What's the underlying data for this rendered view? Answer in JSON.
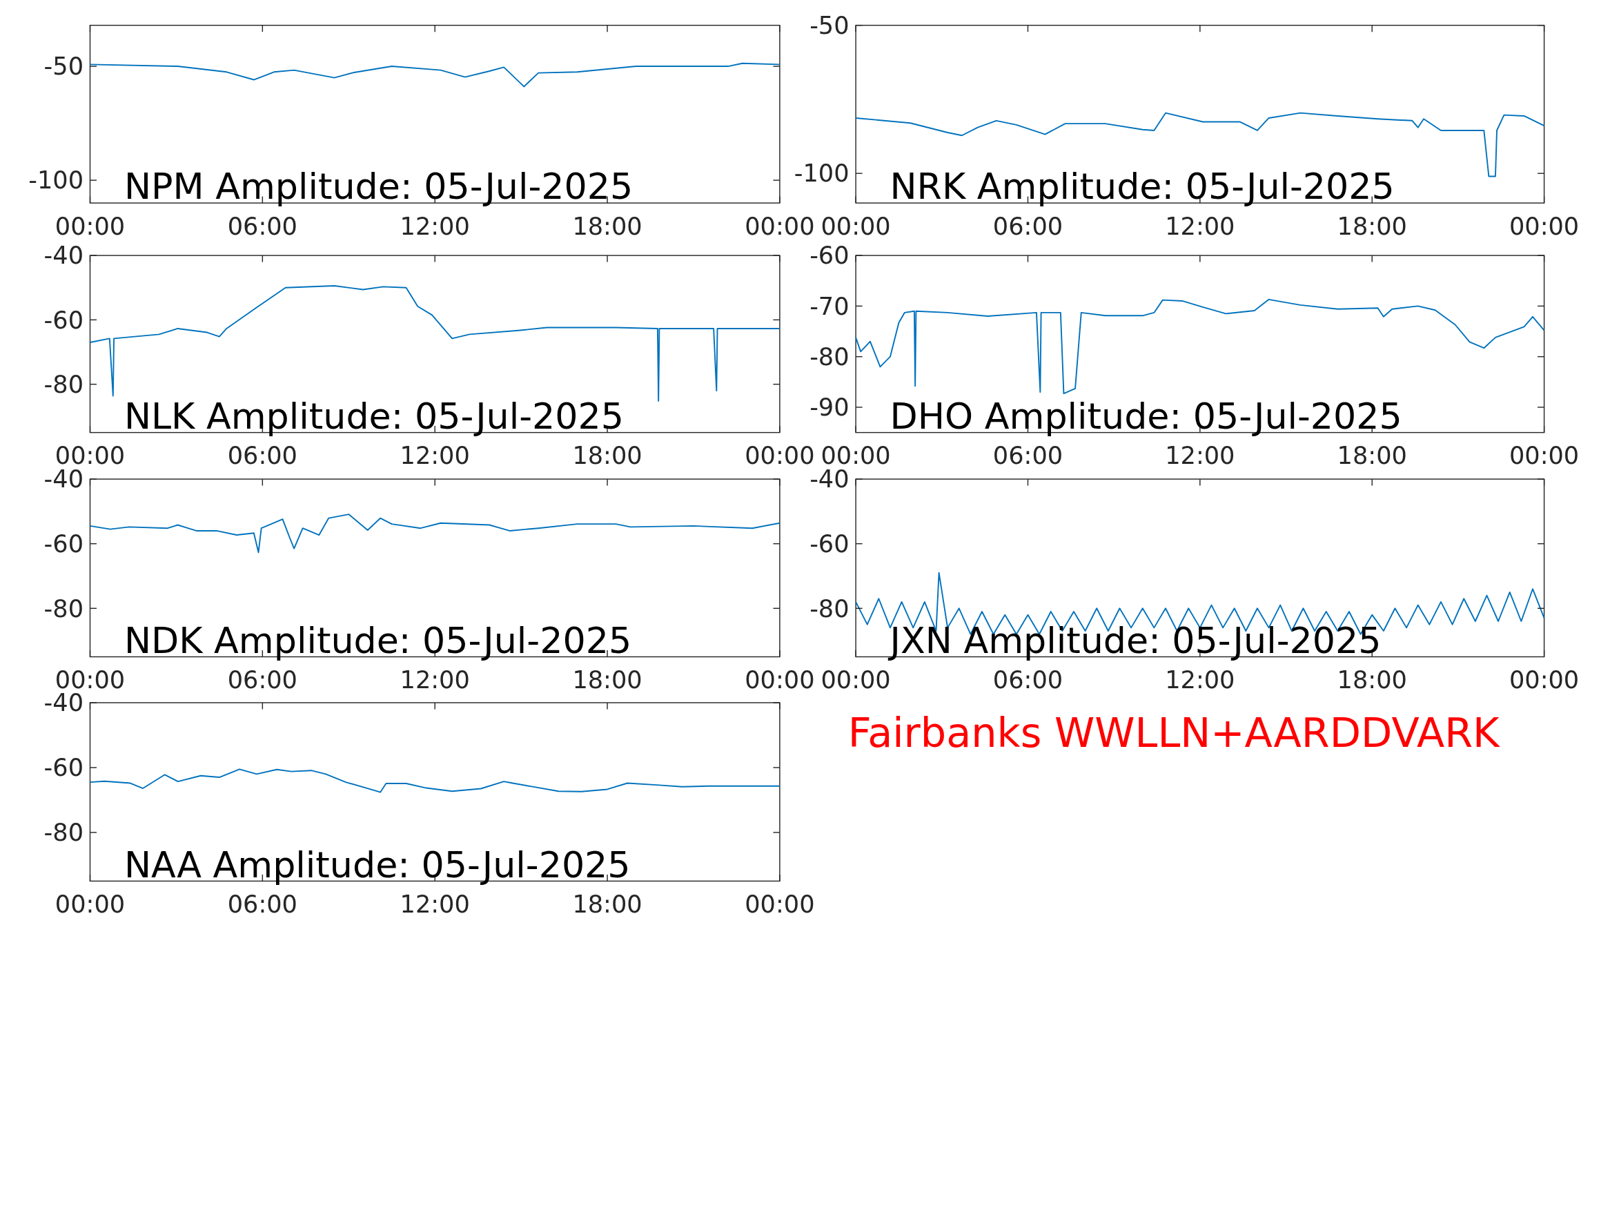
{
  "chart_data": [
    {
      "type": "line",
      "title": "NPM Amplitude: 05-Jul-2025",
      "color": "#0072bd",
      "xlim": [
        0,
        24
      ],
      "xticks": [
        {
          "value": 0,
          "label": "00:00"
        },
        {
          "value": 6,
          "label": "06:00"
        },
        {
          "value": 12,
          "label": "12:00"
        },
        {
          "value": 18,
          "label": "18:00"
        },
        {
          "value": 24,
          "label": "00:00"
        }
      ],
      "ylim": [
        -110,
        -32
      ],
      "yticks": [
        -100,
        -50
      ],
      "x": [
        0,
        3.05,
        4.75,
        5.7,
        6.4,
        7.1,
        8.5,
        9.15,
        10.5,
        12.2,
        13.05,
        13.9,
        14.4,
        15.1,
        15.6,
        16.95,
        19,
        22.2,
        22.7,
        24
      ],
      "values": [
        -49.2,
        -50,
        -52.5,
        -55.9,
        -52.5,
        -51.7,
        -55,
        -52.8,
        -50,
        -51.7,
        -54.7,
        -52.1,
        -50.4,
        -58.9,
        -52.9,
        -52.5,
        -50,
        -50,
        -48.7,
        -49.2
      ]
    },
    {
      "type": "line",
      "title": "NRK Amplitude: 05-Jul-2025",
      "color": "#0072bd",
      "xlim": [
        0,
        24
      ],
      "xticks": [
        {
          "value": 0,
          "label": "00:00"
        },
        {
          "value": 6,
          "label": "06:00"
        },
        {
          "value": 12,
          "label": "12:00"
        },
        {
          "value": 18,
          "label": "18:00"
        },
        {
          "value": 24,
          "label": "00:00"
        }
      ],
      "ylim": [
        -110,
        -50
      ],
      "yticks": [
        -100,
        -50
      ],
      "x": [
        0,
        1.9,
        3.2,
        3.7,
        4.25,
        4.9,
        5.6,
        6.6,
        7.3,
        8.7,
        10,
        10.4,
        10.8,
        12.1,
        13.4,
        14,
        14.4,
        15.5,
        16.8,
        18.2,
        19.4,
        19.6,
        19.8,
        20.4,
        21.9,
        22.07,
        22.3,
        22.35,
        22.6,
        23.3,
        24
      ],
      "values": [
        -81.3,
        -83,
        -86.2,
        -87.2,
        -84.5,
        -82.2,
        -83.6,
        -86.8,
        -83.2,
        -83.2,
        -85.2,
        -85.5,
        -79.6,
        -82.6,
        -82.6,
        -85.5,
        -81.3,
        -79.6,
        -80.6,
        -81.6,
        -82.2,
        -84.5,
        -81.6,
        -85.5,
        -85.5,
        -101,
        -101,
        -85.5,
        -80.3,
        -80.6,
        -83.9
      ]
    },
    {
      "type": "line",
      "title": "NLK Amplitude: 05-Jul-2025",
      "color": "#0072bd",
      "xlim": [
        0,
        24
      ],
      "xticks": [
        {
          "value": 0,
          "label": "00:00"
        },
        {
          "value": 6,
          "label": "06:00"
        },
        {
          "value": 12,
          "label": "12:00"
        },
        {
          "value": 18,
          "label": "18:00"
        },
        {
          "value": 24,
          "label": "00:00"
        }
      ],
      "ylim": [
        -95,
        -40
      ],
      "yticks": [
        -80,
        -60,
        -40
      ],
      "x": [
        0,
        0.68,
        0.8,
        0.83,
        2.4,
        3.05,
        4.07,
        4.5,
        4.75,
        5.76,
        6.8,
        8.5,
        9.5,
        10.2,
        11,
        11.4,
        11.9,
        12.6,
        13.2,
        14.9,
        15.9,
        18.3,
        19.75,
        19.78,
        19.81,
        21.7,
        21.8,
        21.83,
        24
      ],
      "values": [
        -67,
        -65.8,
        -83.6,
        -65.8,
        -64.5,
        -62.7,
        -63.9,
        -65.2,
        -62.7,
        -56.4,
        -50,
        -49.4,
        -50.6,
        -49.7,
        -50,
        -55.8,
        -58.5,
        -65.8,
        -64.5,
        -63.3,
        -62.4,
        -62.4,
        -62.7,
        -85.2,
        -62.7,
        -62.7,
        -82,
        -62.7,
        -62.7
      ]
    },
    {
      "type": "line",
      "title": "DHO Amplitude: 05-Jul-2025",
      "color": "#0072bd",
      "xlim": [
        0,
        24
      ],
      "xticks": [
        {
          "value": 0,
          "label": "00:00"
        },
        {
          "value": 6,
          "label": "06:00"
        },
        {
          "value": 12,
          "label": "12:00"
        },
        {
          "value": 18,
          "label": "18:00"
        },
        {
          "value": 24,
          "label": "00:00"
        }
      ],
      "ylim": [
        -95,
        -60
      ],
      "yticks": [
        -90,
        -80,
        -70,
        -60
      ],
      "x": [
        0,
        0.17,
        0.5,
        0.85,
        1.2,
        1.5,
        1.7,
        2.04,
        2.07,
        2.1,
        3.2,
        4.6,
        6.3,
        6.43,
        6.46,
        7.14,
        7.25,
        7.65,
        7.86,
        8.7,
        10,
        10.4,
        10.7,
        11.4,
        12.1,
        12.9,
        13.9,
        14.4,
        15.5,
        16.8,
        18.2,
        18.4,
        18.7,
        19.6,
        20.2,
        20.9,
        21.4,
        21.9,
        22.3,
        23.3,
        23.6,
        24
      ],
      "values": [
        -76.2,
        -79,
        -77,
        -82,
        -80,
        -73.3,
        -71.3,
        -71,
        -85.8,
        -71,
        -71.3,
        -72,
        -71.3,
        -87,
        -71.3,
        -71.3,
        -87.3,
        -86.3,
        -71.3,
        -71.9,
        -71.9,
        -71.3,
        -68.8,
        -69,
        -70.2,
        -71.5,
        -70.9,
        -68.7,
        -69.8,
        -70.6,
        -70.4,
        -72.1,
        -70.6,
        -70,
        -70.8,
        -73.7,
        -77.1,
        -78.3,
        -76.2,
        -74.1,
        -72.1,
        -74.8
      ]
    },
    {
      "type": "line",
      "title": "NDK Amplitude: 05-Jul-2025",
      "color": "#0072bd",
      "xlim": [
        0,
        24
      ],
      "xticks": [
        {
          "value": 0,
          "label": "00:00"
        },
        {
          "value": 6,
          "label": "06:00"
        },
        {
          "value": 12,
          "label": "12:00"
        },
        {
          "value": 18,
          "label": "18:00"
        },
        {
          "value": 24,
          "label": "00:00"
        }
      ],
      "ylim": [
        -95,
        -40
      ],
      "yticks": [
        -80,
        -60,
        -40
      ],
      "x": [
        0,
        0.7,
        1.36,
        2.7,
        3.05,
        3.7,
        4.4,
        5.1,
        5.7,
        5.86,
        5.96,
        6.7,
        6.95,
        7.1,
        7.4,
        7.97,
        8.3,
        9,
        9.66,
        10.1,
        10.5,
        11.5,
        12.2,
        13.9,
        14.6,
        15.6,
        16.95,
        18.3,
        18.8,
        21,
        23.05,
        24
      ],
      "values": [
        -54.5,
        -55.5,
        -54.8,
        -55.2,
        -54.2,
        -56,
        -56,
        -57.3,
        -56.7,
        -62.7,
        -55.2,
        -52.4,
        -58.2,
        -61.5,
        -55.2,
        -57.3,
        -52.1,
        -50.9,
        -55.8,
        -52.1,
        -53.9,
        -55.2,
        -53.6,
        -54.2,
        -56,
        -55.2,
        -53.9,
        -53.9,
        -54.8,
        -54.5,
        -55.2,
        -53.6
      ]
    },
    {
      "type": "line",
      "title": "JXN Amplitude: 05-Jul-2025",
      "color": "#0072bd",
      "xlim": [
        0,
        24
      ],
      "xticks": [
        {
          "value": 0,
          "label": "00:00"
        },
        {
          "value": 6,
          "label": "06:00"
        },
        {
          "value": 12,
          "label": "12:00"
        },
        {
          "value": 18,
          "label": "18:00"
        },
        {
          "value": 24,
          "label": "00:00"
        }
      ],
      "ylim": [
        -95,
        -40
      ],
      "yticks": [
        -80,
        -60,
        -40
      ],
      "x": [
        0,
        0.4,
        0.8,
        1.2,
        1.6,
        2,
        2.4,
        2.8,
        2.9,
        3.2,
        3.6,
        4,
        4.4,
        4.8,
        5.2,
        5.6,
        6,
        6.4,
        6.8,
        7.2,
        7.6,
        8,
        8.4,
        8.8,
        9.2,
        9.6,
        10,
        10.4,
        10.8,
        11.2,
        11.6,
        12,
        12.4,
        12.8,
        13.2,
        13.6,
        14,
        14.4,
        14.8,
        15.2,
        15.6,
        16,
        16.4,
        16.8,
        17.2,
        17.6,
        18,
        18.4,
        18.8,
        19.2,
        19.6,
        20,
        20.4,
        20.8,
        21.2,
        21.6,
        22,
        22.4,
        22.8,
        23.2,
        23.6,
        24
      ],
      "values": [
        -78,
        -85,
        -77,
        -86,
        -78,
        -86,
        -78,
        -87,
        -69,
        -86,
        -80,
        -88,
        -81,
        -88,
        -82,
        -88,
        -82,
        -88,
        -81,
        -87,
        -81,
        -87,
        -80,
        -87,
        -80,
        -86,
        -80,
        -86,
        -80,
        -87,
        -80,
        -86,
        -79,
        -86,
        -80,
        -87,
        -80,
        -86,
        -79,
        -87,
        -80,
        -87,
        -81,
        -87,
        -81,
        -88,
        -82,
        -87,
        -80,
        -86,
        -79,
        -85,
        -78,
        -85,
        -77,
        -84,
        -76,
        -84,
        -75,
        -84,
        -74,
        -83
      ]
    },
    {
      "type": "line",
      "title": "NAA Amplitude: 05-Jul-2025",
      "color": "#0072bd",
      "xlim": [
        0,
        24
      ],
      "xticks": [
        {
          "value": 0,
          "label": "00:00"
        },
        {
          "value": 6,
          "label": "06:00"
        },
        {
          "value": 12,
          "label": "12:00"
        },
        {
          "value": 18,
          "label": "18:00"
        },
        {
          "value": 24,
          "label": "00:00"
        }
      ],
      "ylim": [
        -95,
        -40
      ],
      "yticks": [
        -80,
        -60,
        -40
      ],
      "x": [
        0,
        0.5,
        1.4,
        1.84,
        2.6,
        3.06,
        3.85,
        4.5,
        5.2,
        5.8,
        6.5,
        7,
        7.7,
        8.2,
        8.9,
        9.8,
        10.1,
        10.3,
        11,
        11.7,
        12.6,
        13.6,
        14.4,
        14.7,
        15.4,
        16.3,
        17.1,
        18,
        18.7,
        19.8,
        20.6,
        21.5,
        22.4,
        24
      ],
      "values": [
        -64.5,
        -64.2,
        -64.8,
        -66.4,
        -62.2,
        -64.3,
        -62.5,
        -63,
        -60.5,
        -62,
        -60.6,
        -61.2,
        -60.9,
        -62,
        -64.5,
        -66.8,
        -67.6,
        -64.9,
        -64.9,
        -66.3,
        -67.3,
        -66.5,
        -64.3,
        -64.8,
        -65.9,
        -67.3,
        -67.4,
        -66.7,
        -64.8,
        -65.4,
        -65.9,
        -65.7,
        -65.7,
        -65.7
      ]
    },
    {
      "type": "other",
      "title": "Fairbanks WWLLN+AARDDVARK",
      "color": "#ff0000"
    }
  ]
}
